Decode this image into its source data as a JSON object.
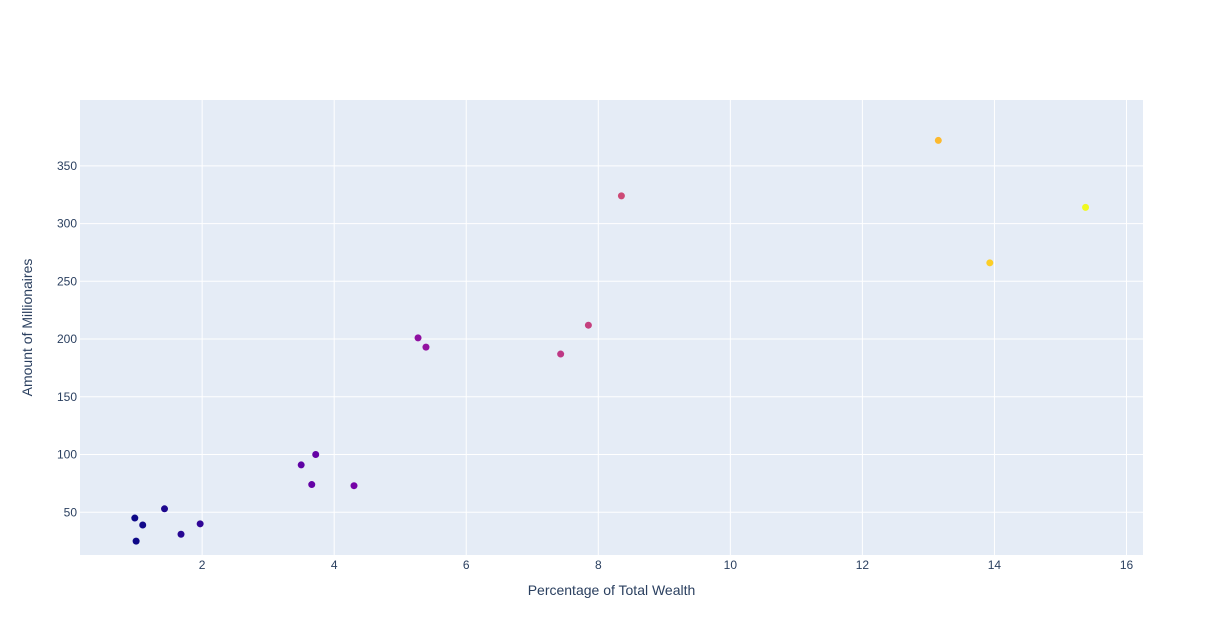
{
  "chart_data": {
    "type": "scatter",
    "title": "",
    "xlabel": "Percentage of Total Wealth",
    "ylabel": "Amount of Millionaires",
    "xlim": [
      0.15,
      16.25
    ],
    "ylim": [
      13,
      407
    ],
    "x_ticks": [
      2,
      4,
      6,
      8,
      10,
      12,
      14,
      16
    ],
    "y_ticks": [
      50,
      100,
      150,
      200,
      250,
      300,
      350
    ],
    "grid": true,
    "colorscale": "plasma",
    "points": [
      {
        "x": 0.98,
        "y": 45
      },
      {
        "x": 1.0,
        "y": 25
      },
      {
        "x": 1.1,
        "y": 39
      },
      {
        "x": 1.43,
        "y": 53
      },
      {
        "x": 1.68,
        "y": 31
      },
      {
        "x": 1.97,
        "y": 40
      },
      {
        "x": 3.5,
        "y": 91
      },
      {
        "x": 3.66,
        "y": 74
      },
      {
        "x": 3.72,
        "y": 100
      },
      {
        "x": 4.3,
        "y": 73
      },
      {
        "x": 5.27,
        "y": 201
      },
      {
        "x": 5.39,
        "y": 193
      },
      {
        "x": 7.43,
        "y": 187
      },
      {
        "x": 7.85,
        "y": 212
      },
      {
        "x": 8.35,
        "y": 324
      },
      {
        "x": 13.15,
        "y": 372
      },
      {
        "x": 13.93,
        "y": 266
      },
      {
        "x": 15.38,
        "y": 314
      }
    ]
  },
  "colors": {
    "plot_background": "#e5ecf6",
    "grid": "#ffffff",
    "text": "#2a3f5f"
  }
}
